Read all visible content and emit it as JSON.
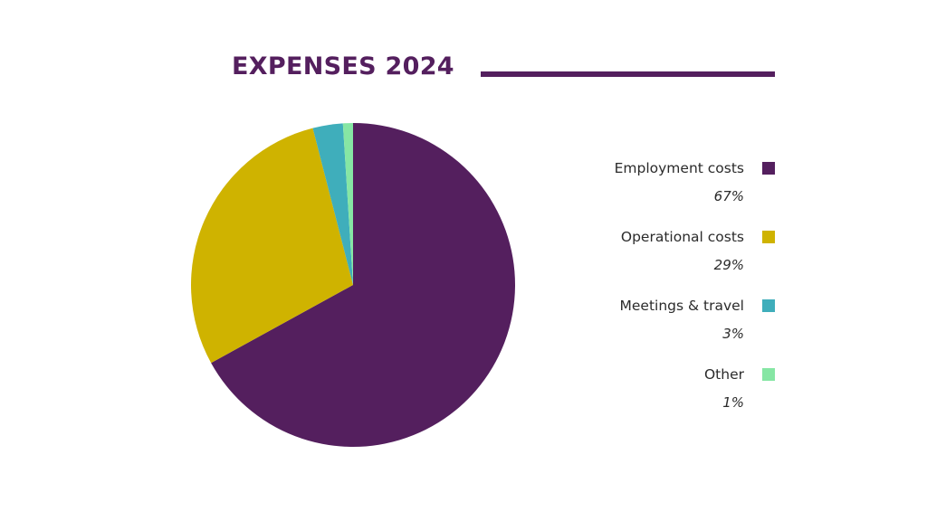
{
  "chart_data": {
    "type": "pie",
    "title": "EXPENSES 2024",
    "categories": [
      "Employment costs",
      "Operational costs",
      "Meetings & travel",
      "Other"
    ],
    "values": [
      67,
      29,
      3,
      1
    ],
    "labels": [
      "67%",
      "29%",
      "3%",
      "1%"
    ],
    "colors": [
      "#541f5e",
      "#cfb300",
      "#3faebb",
      "#86e6a4"
    ],
    "legend_placement": "right",
    "start": "top",
    "direction": "clockwise"
  }
}
